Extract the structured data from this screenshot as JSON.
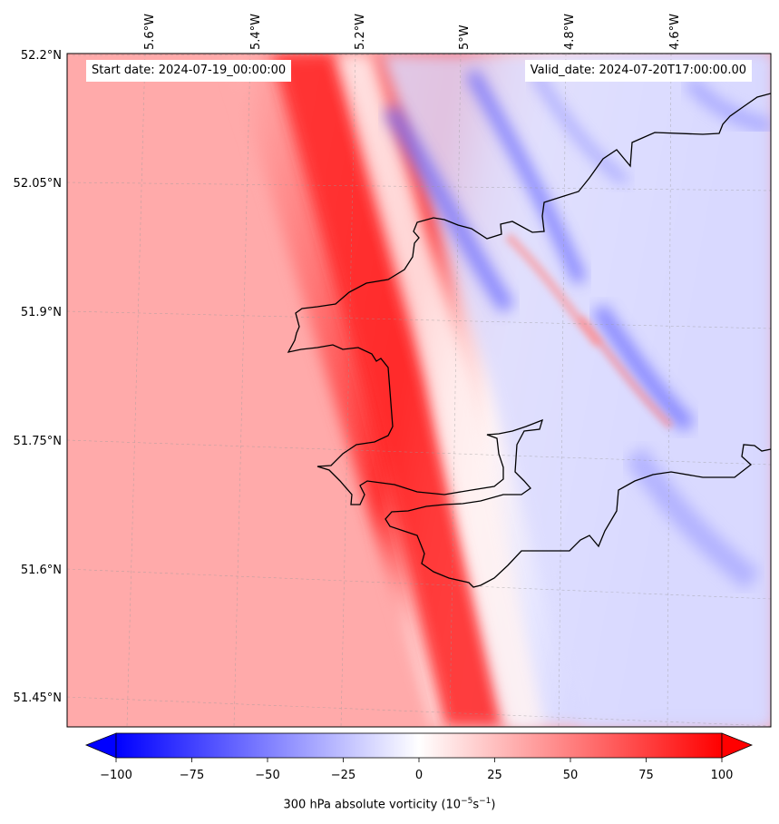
{
  "header": {
    "start_date": "Start date: 2024-07-19_00:00:00",
    "valid_date": "Valid_date: 2024-07-20T17:00:00.00"
  },
  "map": {
    "lon_labels": [
      "5.6°W",
      "5.4°W",
      "5.2°W",
      "5°W",
      "4.8°W",
      "4.6°W"
    ],
    "lat_labels": [
      "52.2°N",
      "52.05°N",
      "51.9°N",
      "51.75°N",
      "51.6°N",
      "51.45°N"
    ],
    "field": "300 hPa absolute vorticity",
    "coastline_color": "#000000"
  },
  "colorbar": {
    "min": -100,
    "max": 100,
    "ticks": [
      "−100",
      "−75",
      "−50",
      "−25",
      "0",
      "25",
      "50",
      "75",
      "100"
    ],
    "title_text": "300 hPa absolute vorticity (10",
    "title_exp1": "−5",
    "title_mid": "s",
    "title_exp2": "−1",
    "title_end": ")",
    "colormap": "bwr",
    "low_color": "#0000ff",
    "mid_color": "#ffffff",
    "high_color": "#ff0000"
  }
}
